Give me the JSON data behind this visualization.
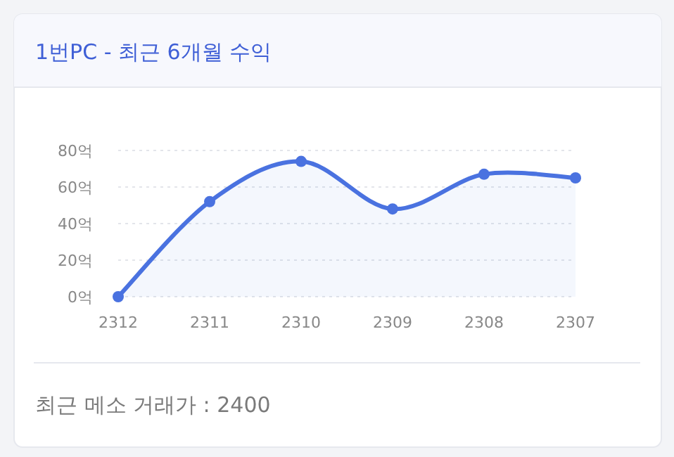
{
  "chart_data": {
    "type": "area",
    "title": "1번PC - 최근 6개월 수익",
    "categories": [
      "2312",
      "2311",
      "2310",
      "2309",
      "2308",
      "2307"
    ],
    "values": [
      0,
      52,
      74,
      48,
      67,
      65
    ],
    "color": "#4a72e0",
    "ylim": [
      0,
      80
    ],
    "yticks": [
      {
        "value": 0,
        "label": "0억"
      },
      {
        "value": 20,
        "label": "20억"
      },
      {
        "value": 40,
        "label": "40억"
      },
      {
        "value": 60,
        "label": "60억"
      },
      {
        "value": 80,
        "label": "80억"
      }
    ],
    "grid": "y",
    "marker": "circle",
    "line_style": "solid",
    "annotations": [
      "최근 메소 거래가 : 2400"
    ]
  }
}
